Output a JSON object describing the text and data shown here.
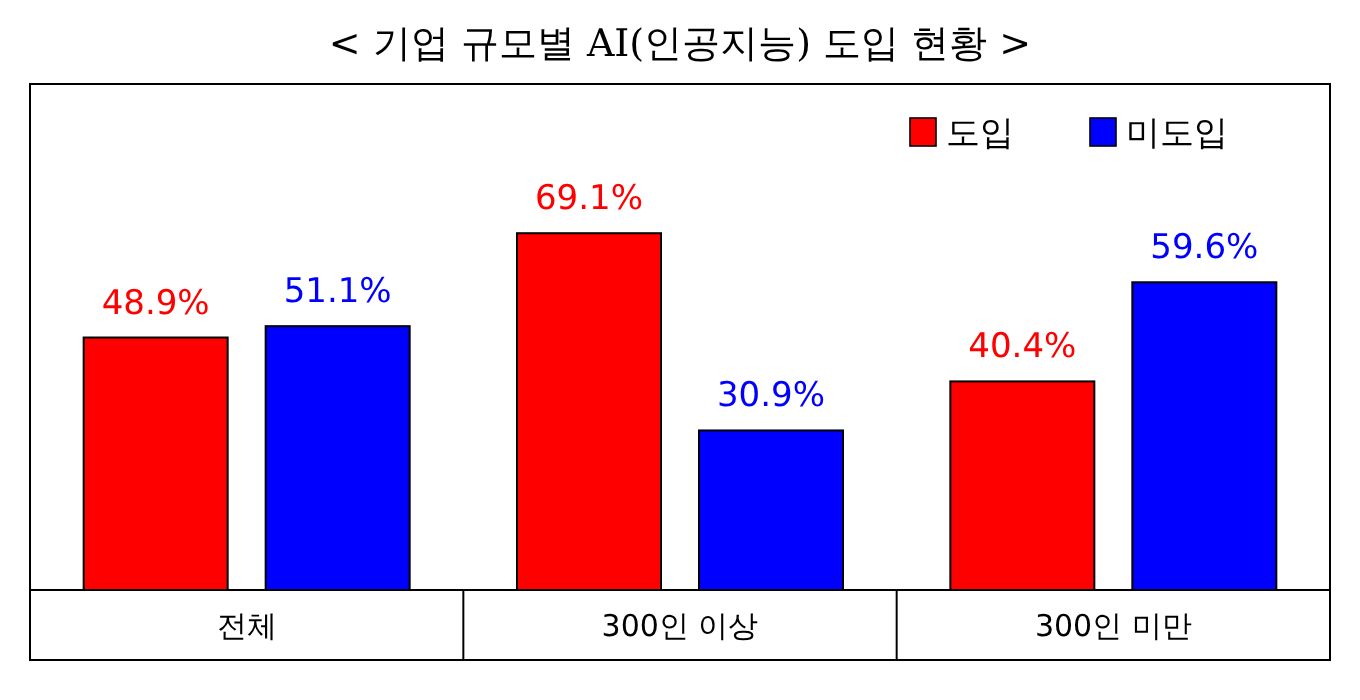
{
  "chart_data": {
    "type": "bar",
    "title": "< 기업 규모별 AI(인공지능) 도입 현황 >",
    "categories": [
      "전체",
      "300인 이상",
      "300인 미만"
    ],
    "series": [
      {
        "name": "도입",
        "color": "#ff0000",
        "values": [
          48.9,
          69.1,
          40.4
        ],
        "value_labels": [
          "48.9%",
          "69.1%",
          "40.4%"
        ]
      },
      {
        "name": "미도입",
        "color": "#0000ff",
        "values": [
          51.1,
          30.9,
          59.6
        ],
        "value_labels": [
          "51.1%",
          "30.9%",
          "59.6%"
        ]
      }
    ],
    "ylim": [
      0,
      98
    ],
    "legend": "top right"
  }
}
